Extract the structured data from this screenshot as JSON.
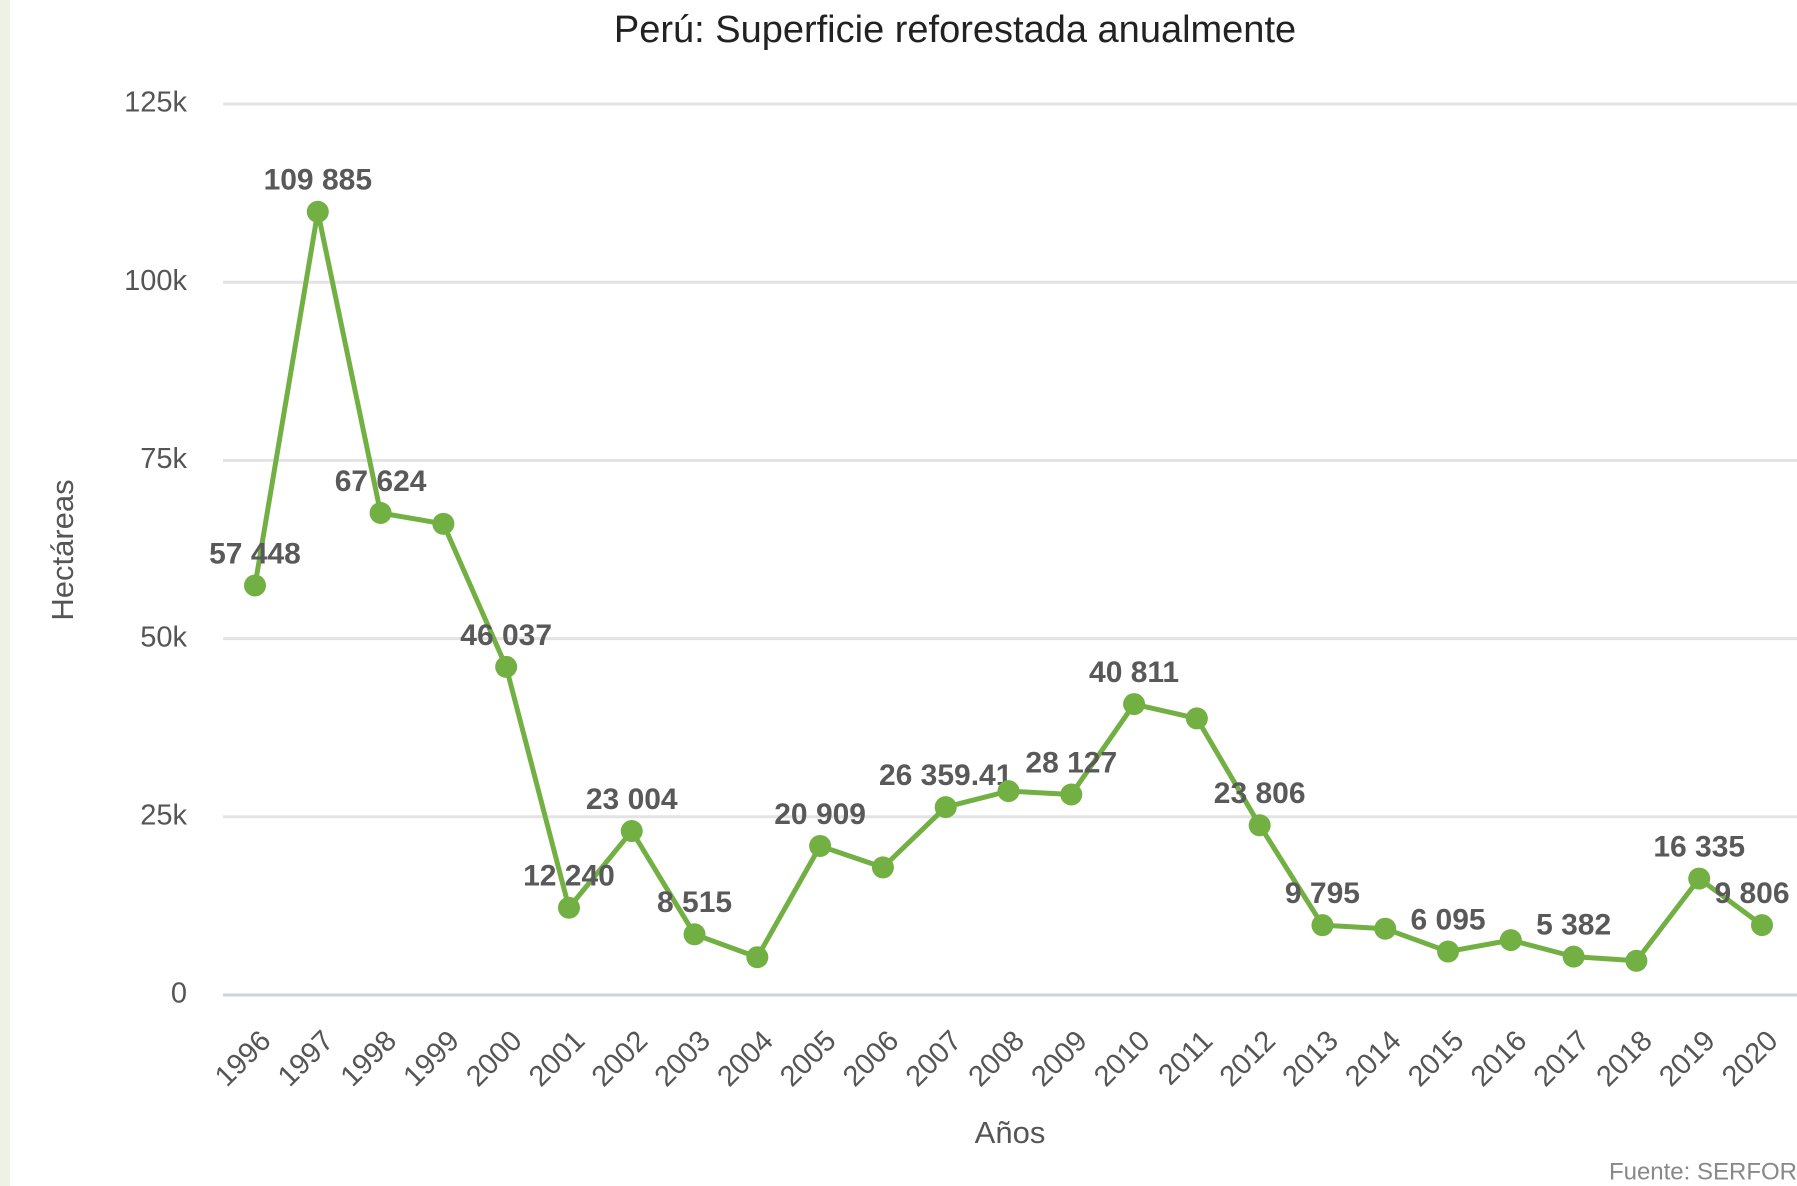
{
  "chart_data": {
    "type": "line",
    "title": "Perú: Superficie reforestada anualmente",
    "x_label": "Años",
    "y_label": "Hectáreas",
    "source": "Fuente: SERFOR",
    "categories": [
      "1996",
      "1997",
      "1998",
      "1999",
      "2000",
      "2001",
      "2002",
      "2003",
      "2004",
      "2005",
      "2006",
      "2007",
      "2008",
      "2009",
      "2010",
      "2011",
      "2012",
      "2013",
      "2014",
      "2015",
      "2016",
      "2017",
      "2018",
      "2019",
      "2020"
    ],
    "series": [
      {
        "name": "Superficie reforestada",
        "color": "#72b043",
        "values": [
          57448,
          109885,
          67624,
          66100,
          46037,
          12240,
          23004,
          8515,
          5300,
          20909,
          17900,
          26359.41,
          28600,
          28127,
          40811,
          38800,
          23806,
          9795,
          9300,
          6095,
          7700,
          5382,
          4800,
          16335,
          9806
        ],
        "value_labels": [
          "57 448",
          "109 885",
          "67 624",
          null,
          "46 037",
          "12 240",
          "23 004",
          "8 515",
          null,
          "20 909",
          null,
          "26 359.41",
          null,
          "28 127",
          "40 811",
          null,
          "23 806",
          "9 795",
          null,
          "6 095",
          null,
          "5 382",
          null,
          "16 335",
          "9 806"
        ]
      }
    ],
    "ylim": [
      0,
      125000
    ],
    "yticks": [
      0,
      {
        "value": 25000,
        "label": "25k"
      },
      {
        "value": 50000,
        "label": "50k"
      },
      {
        "value": 75000,
        "label": "75k"
      },
      {
        "value": 100000,
        "label": "100k"
      },
      {
        "value": 125000,
        "label": "125k"
      }
    ],
    "grid": true
  }
}
